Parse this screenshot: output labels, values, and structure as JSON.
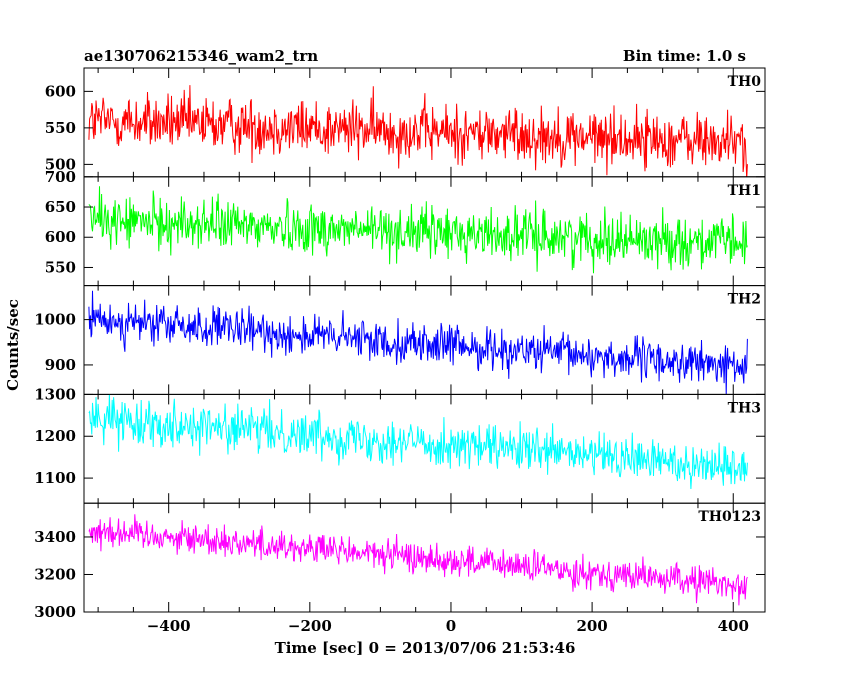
{
  "header": {
    "title": "ae130706215346_wam2_trn",
    "bin_time": "Bin time: 1.0 s"
  },
  "axes": {
    "ylabel": "Counts/sec",
    "xlabel": "Time [sec] 0 = 2013/07/06 21:53:46",
    "x_ticks": [
      "−400",
      "−200",
      "0",
      "200",
      "400"
    ]
  },
  "chart_data": {
    "type": "line",
    "x_range": [
      -513,
      420
    ],
    "xlim": [
      -520,
      445
    ],
    "x_tick_values": [
      -400,
      -200,
      0,
      200,
      400
    ],
    "bin_time_s": 1.0,
    "series": [
      {
        "name": "TH0",
        "color": "#ff0000",
        "ylim": [
          483,
          632
        ],
        "y_ticks": [
          500,
          550,
          600
        ],
        "y_tick_labels": [
          "500",
          "550",
          "600"
        ],
        "mean_start": 560,
        "mean_end": 530,
        "noise": 28
      },
      {
        "name": "TH1",
        "color": "#00ff00",
        "ylim": [
          520,
          700
        ],
        "y_ticks": [
          550,
          600,
          650,
          700
        ],
        "y_tick_labels": [
          "550",
          "600",
          "650",
          "700"
        ],
        "mean_start": 628,
        "mean_end": 590,
        "noise": 30
      },
      {
        "name": "TH2",
        "color": "#0000ff",
        "ylim": [
          835,
          1075
        ],
        "y_ticks": [
          900,
          1000
        ],
        "y_tick_labels": [
          "900",
          "1000"
        ],
        "mean_start": 1000,
        "mean_end": 895,
        "noise": 32
      },
      {
        "name": "TH3",
        "color": "#00ffff",
        "ylim": [
          1040,
          1300
        ],
        "y_ticks": [
          1100,
          1200,
          1300
        ],
        "y_tick_labels": [
          "1100",
          "1200",
          "1300"
        ],
        "mean_start": 1245,
        "mean_end": 1125,
        "noise": 38
      },
      {
        "name": "TH0123",
        "color": "#ff00ff",
        "ylim": [
          3000,
          3580
        ],
        "y_ticks": [
          3000,
          3200,
          3400
        ],
        "y_tick_labels": [
          "3000",
          "3200",
          "3400"
        ],
        "mean_start": 3440,
        "mean_end": 3140,
        "noise": 60
      }
    ]
  }
}
